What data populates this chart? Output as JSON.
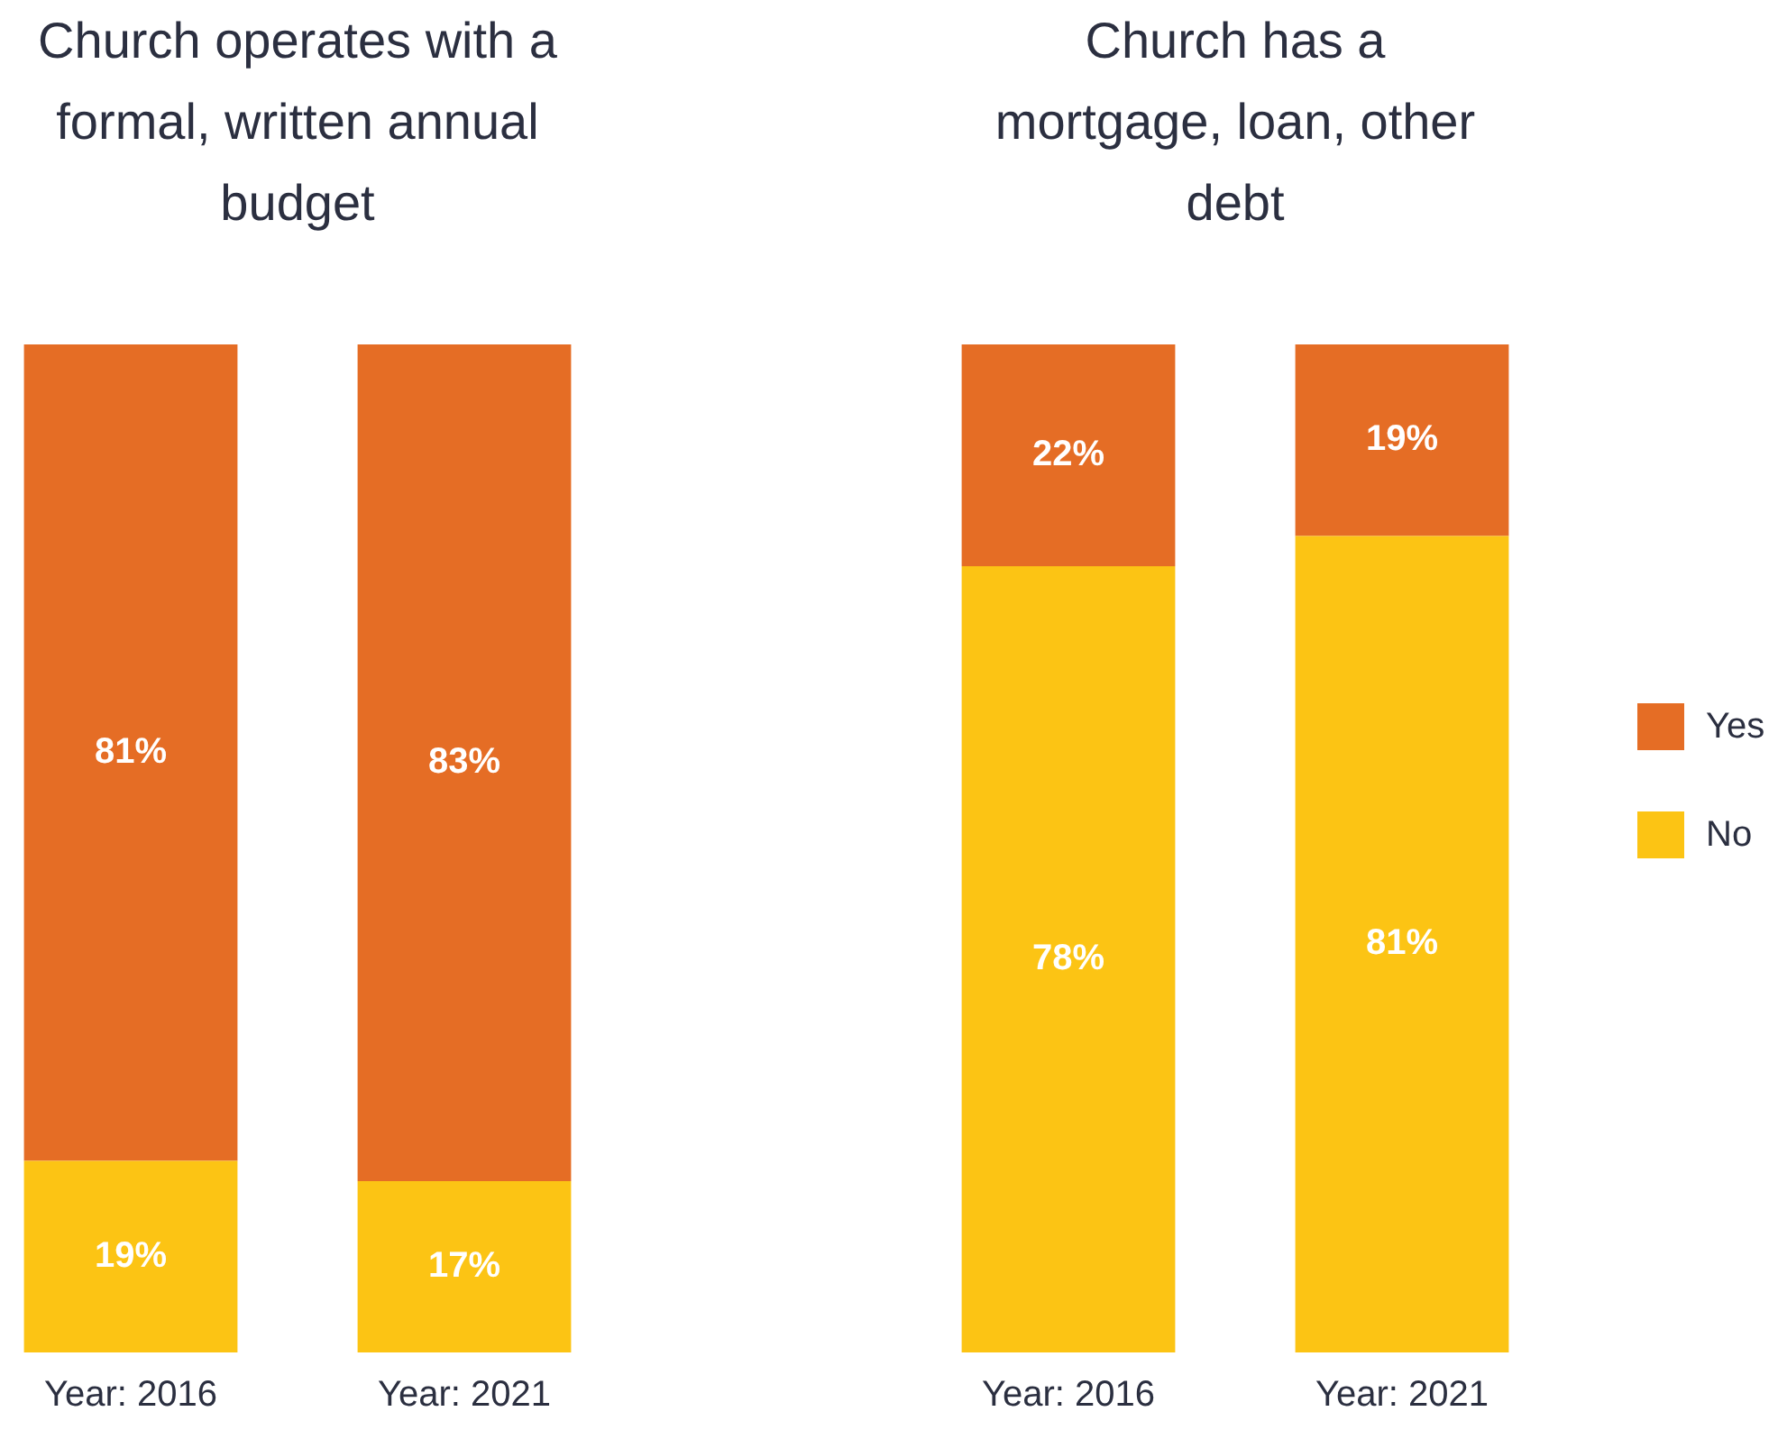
{
  "chart_data": [
    {
      "type": "bar",
      "title": "Church operates with a formal, written annual budget",
      "categories": [
        "Year: 2016",
        "Year: 2021"
      ],
      "stacked": true,
      "tick_labels": "x",
      "grid": false,
      "legend": false,
      "series": [
        {
          "color": "#fcc414",
          "values": [
            19,
            17
          ],
          "value_labels": [
            "19%",
            "17%"
          ]
        },
        {
          "color": "#e56d25",
          "values": [
            81,
            83
          ],
          "value_labels": [
            "81%",
            "83%"
          ]
        }
      ]
    },
    {
      "type": "bar",
      "title": "Church has a mortgage, loan, other debt",
      "categories": [
        "Year: 2016",
        "Year: 2021"
      ],
      "stacked": true,
      "tick_labels": "x",
      "grid": false,
      "legend": "right",
      "series": [
        {
          "name": "No",
          "color": "#fcc414",
          "values": [
            78,
            81
          ],
          "value_labels": [
            "78%",
            "81%"
          ]
        },
        {
          "name": "Yes",
          "color": "#e56d25",
          "values": [
            22,
            19
          ],
          "value_labels": [
            "22%",
            "19%"
          ]
        }
      ]
    }
  ]
}
